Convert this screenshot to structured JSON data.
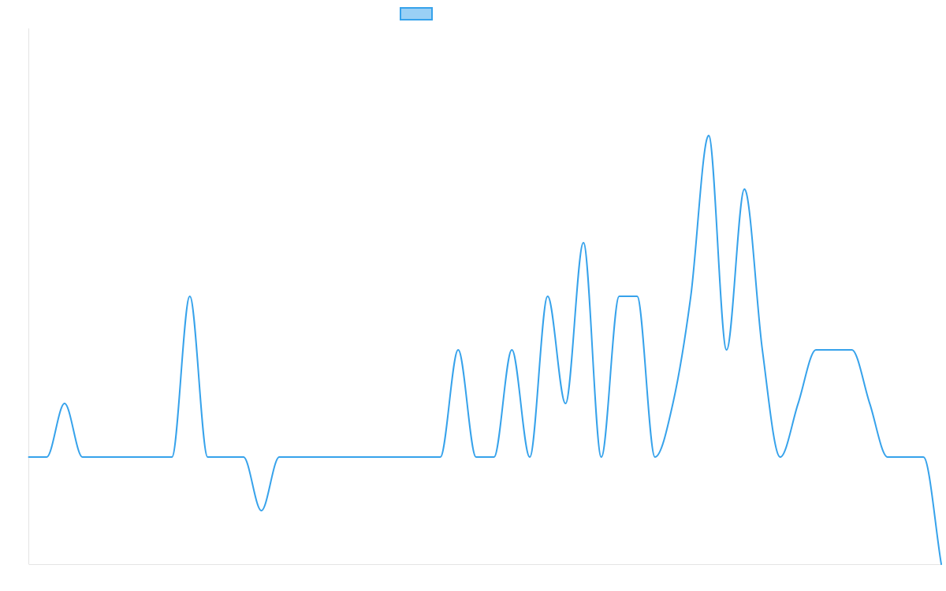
{
  "chart_data": {
    "type": "line",
    "title": "",
    "xlabel": "",
    "ylabel": "",
    "grid": false,
    "legend": {
      "position": "top-center"
    },
    "ylim": [
      -2,
      8
    ],
    "x": [
      0,
      1,
      2,
      3,
      4,
      5,
      6,
      7,
      8,
      9,
      10,
      11,
      12,
      13,
      14,
      15,
      16,
      17,
      18,
      19,
      20,
      21,
      22,
      23,
      24,
      25,
      26,
      27,
      28,
      29,
      30,
      31,
      32,
      33,
      34,
      35,
      36,
      37,
      38,
      39,
      40,
      41,
      42,
      43,
      44,
      45,
      46,
      47,
      48,
      49,
      50,
      51
    ],
    "series": [
      {
        "color": "#36a2eb",
        "fill": "#9ad0f5",
        "values": [
          0,
          0,
          1,
          0,
          0,
          0,
          0,
          0,
          0,
          3,
          0,
          0,
          0,
          -1,
          0,
          0,
          0,
          0,
          0,
          0,
          0,
          0,
          0,
          0,
          2,
          0,
          0,
          2,
          0,
          3,
          1,
          4,
          0,
          3,
          3,
          0,
          1,
          3,
          6,
          2,
          5,
          2,
          0,
          1,
          2,
          2,
          2,
          1,
          0,
          0,
          0,
          -2
        ]
      }
    ]
  }
}
